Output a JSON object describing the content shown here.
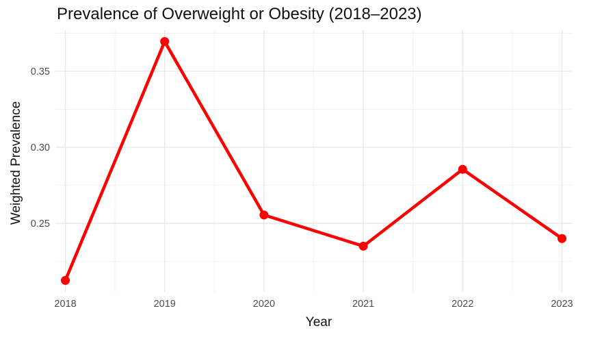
{
  "chart_data": {
    "type": "line",
    "title": "Prevalence of Overweight or Obesity (2018–2023)",
    "xlabel": "Year",
    "ylabel": "Weighted Prevalence",
    "x": [
      2018,
      2019,
      2020,
      2021,
      2022,
      2023
    ],
    "x_tick_labels": [
      "2018",
      "2019",
      "2020",
      "2021",
      "2022",
      "2023"
    ],
    "series": [
      {
        "values": [
          0.2125,
          0.3695,
          0.2555,
          0.235,
          0.2855,
          0.24
        ],
        "color": "#ff0000"
      }
    ],
    "y_ticks": [
      0.25,
      0.3,
      0.35
    ],
    "y_tick_labels": [
      "0.25",
      "0.30",
      "0.35"
    ],
    "xlim": [
      2017.9,
      2023.1
    ],
    "ylim": [
      0.205,
      0.377
    ],
    "grid": true,
    "legend": "none"
  }
}
